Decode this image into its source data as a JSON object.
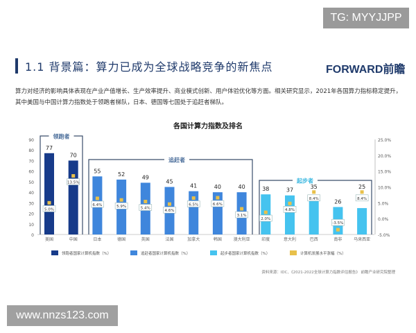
{
  "overlay": {
    "tg": "TG: MYYJJPP",
    "site": "www.nnzs123.com"
  },
  "header": {
    "title": "1.1 背景篇：算力已成为全球战略竞争的新焦点",
    "logo": "FORWARD前瞻"
  },
  "description": "算力对经济的影响具体表现在产业产值增长、生产效率提升、商业模式创新、用户体验优化等方面。相关研究显示，2021年各国算力指标稳定提升，其中美国与中国计算力指数处于领跑者梯队，日本、德国等七国处于追赶者梯队。",
  "source": "资料来源：IDC、《2021-2022全球计算力指数评估报告》 前瞻产业研究院整理",
  "chart_data": {
    "type": "bar",
    "title": "各国计算力指数及排名",
    "categories": [
      "美国",
      "中国",
      "日本",
      "德国",
      "英国",
      "法国",
      "加拿大",
      "韩国",
      "澳大利亚",
      "印度",
      "意大利",
      "巴西",
      "南非",
      "马来西亚"
    ],
    "groups": [
      {
        "name": "领跑者",
        "from": 0,
        "to": 1,
        "color": "#173b8a"
      },
      {
        "name": "追赶者",
        "from": 2,
        "to": 8,
        "color": "#3f86dc"
      },
      {
        "name": "起步者",
        "from": 9,
        "to": 13,
        "color": "#45c3ef"
      }
    ],
    "series": [
      {
        "name": "计算力指数",
        "axis": "left",
        "values": [
          77,
          70,
          55,
          52,
          49,
          45,
          41,
          40,
          40,
          38,
          37,
          35,
          26,
          25
        ]
      },
      {
        "name": "计算机发展水平涨幅（%）",
        "axis": "right",
        "type": "scatter",
        "color": "#e8c04a",
        "values": [
          5.0,
          13.5,
          6.4,
          5.9,
          5.4,
          4.6,
          6.5,
          6.6,
          3.1,
          2.0,
          4.8,
          8.4,
          -3.5,
          8.4
        ],
        "labels": [
          "5.0%",
          "13.5%",
          "6.4%",
          "5.9%",
          "5.4%",
          "4.6%",
          "6.5%",
          "6.6%",
          "3.1%",
          "2.0%",
          "4.8%",
          "8.4%",
          "-3.5%",
          "8.4%"
        ]
      }
    ],
    "ylim": [
      0,
      90
    ],
    "yticks": [
      "0",
      "10",
      "20",
      "30",
      "40",
      "50",
      "60",
      "70",
      "80",
      "90"
    ],
    "y2lim": [
      -5,
      25
    ],
    "y2ticks": [
      "-5.0%",
      "0.0%",
      "5.0%",
      "10.0%",
      "15.0%",
      "20.0%",
      "25.0%"
    ],
    "legend": [
      "领跑者国家计算机指数（%）",
      "追赶者国家计算机指数（%）",
      "起步者国家计算机指数（%）",
      "计算机发展水平涨幅（%）"
    ],
    "legend_position": "bottom"
  }
}
